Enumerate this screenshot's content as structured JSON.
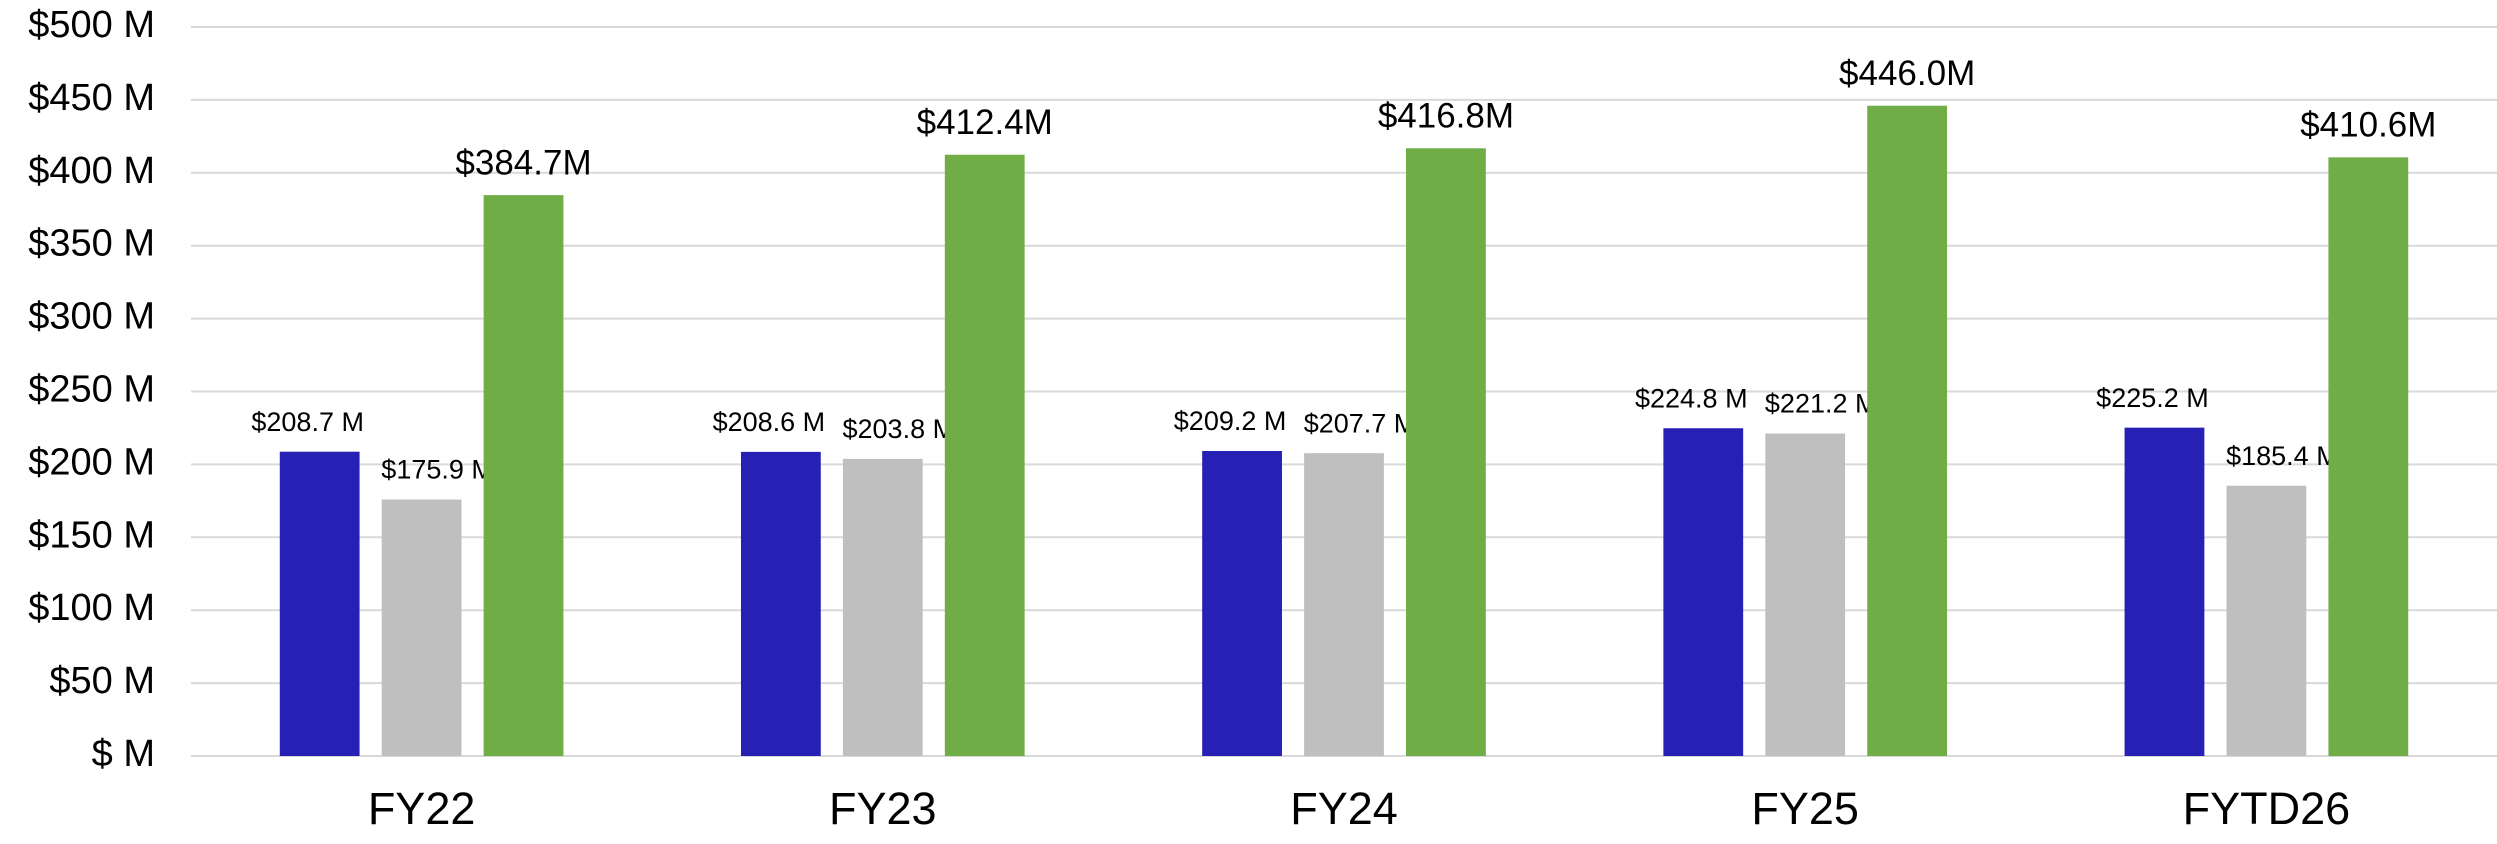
{
  "chart_data": {
    "type": "bar",
    "categories": [
      "FY22",
      "FY23",
      "FY24",
      "FY25",
      "FYTD26"
    ],
    "series": [
      {
        "color": "#2620b5",
        "values": [
          208.7,
          208.6,
          209.2,
          224.8,
          225.2
        ],
        "value_labels": [
          "$208.7 M",
          "$208.6 M",
          "$209.2 M",
          "$224.8 M",
          "$225.2 M"
        ]
      },
      {
        "color": "#bfbfbf",
        "values": [
          175.9,
          203.8,
          207.7,
          221.2,
          185.4
        ],
        "value_labels": [
          "$175.9 M",
          "$203.8 M",
          "$207.7 M",
          "$221.2 M",
          "$185.4 M"
        ]
      },
      {
        "color": "#70ad47",
        "values": [
          384.7,
          412.4,
          416.8,
          446.0,
          410.6
        ],
        "value_labels": [
          "$384.7M",
          "$412.4M",
          "$416.8M",
          "$446.0M",
          "$410.6M"
        ]
      }
    ],
    "ylim": [
      0,
      500
    ],
    "yticks": [
      {
        "value": 0,
        "label": "$ M"
      },
      {
        "value": 50,
        "label": "$50 M"
      },
      {
        "value": 100,
        "label": "$100 M"
      },
      {
        "value": 150,
        "label": "$150 M"
      },
      {
        "value": 200,
        "label": "$200 M"
      },
      {
        "value": 250,
        "label": "$250 M"
      },
      {
        "value": 300,
        "label": "$300 M"
      },
      {
        "value": 350,
        "label": "$350 M"
      },
      {
        "value": 400,
        "label": "$400 M"
      },
      {
        "value": 450,
        "label": "$450 M"
      },
      {
        "value": 500,
        "label": "$500 M"
      }
    ],
    "grid": true
  }
}
